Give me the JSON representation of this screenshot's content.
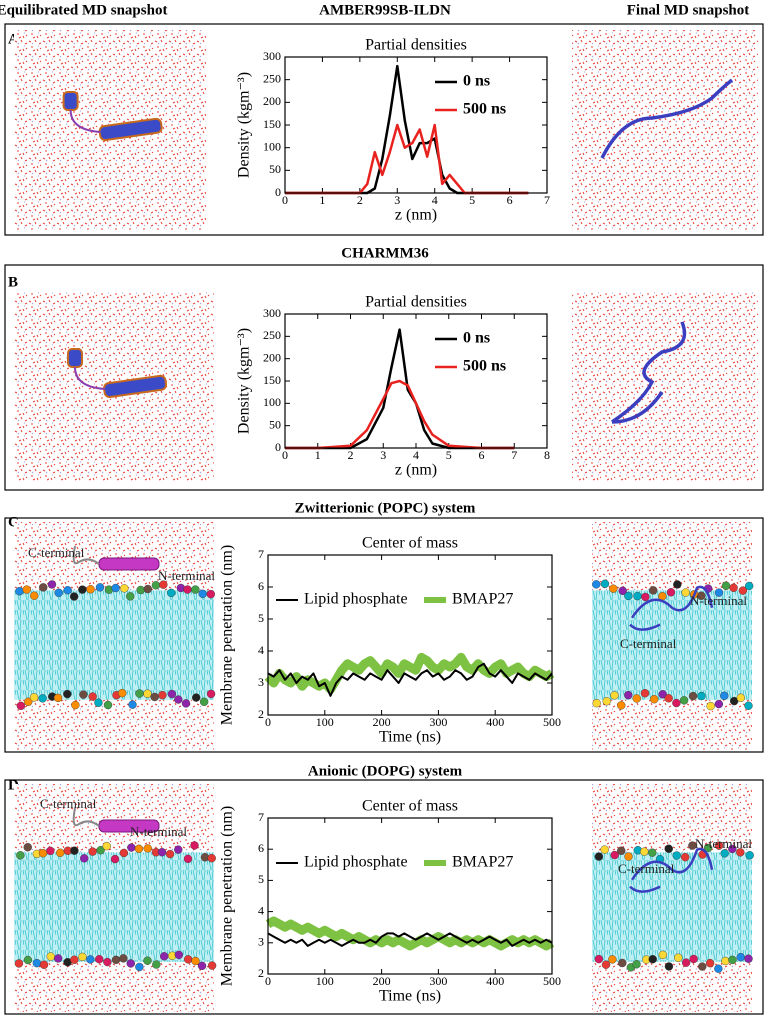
{
  "headers": {
    "left": "Equilibrated MD snapshot",
    "right": "Final MD snapshot"
  },
  "panels": [
    {
      "label": "A",
      "title": "AMBER99SB-ILDN"
    },
    {
      "label": "B",
      "title": "CHARMM36"
    },
    {
      "label": "C",
      "title": "Zwitterionic (POPC) system",
      "annotations": {
        "left": [
          "C-terminal",
          "N-terminal"
        ],
        "right": [
          "N-terminal",
          "C-terminal"
        ]
      }
    },
    {
      "label": "D",
      "title": "Anionic (DOPG) system",
      "annotations": {
        "left": [
          "C-terminal",
          "N-terminal"
        ],
        "right": [
          "N-terminal",
          "C-terminal"
        ]
      }
    }
  ],
  "chart_data": [
    {
      "type": "line",
      "title": "Partial densities",
      "x_label": "z (nm)",
      "y_label": "Density (kgm⁻³)",
      "xlim": [
        0,
        7
      ],
      "ylim": [
        0,
        300
      ],
      "xticks": [
        0,
        1,
        2,
        3,
        4,
        5,
        6,
        7
      ],
      "yticks": [
        0,
        50,
        100,
        150,
        200,
        250,
        300
      ],
      "legend": "upper right",
      "x": [
        0,
        0.5,
        1,
        1.5,
        2,
        2.2,
        2.4,
        2.6,
        2.8,
        3.0,
        3.2,
        3.4,
        3.6,
        3.8,
        4.0,
        4.2,
        4.4,
        4.6,
        4.8,
        5,
        6,
        6.5
      ],
      "series": [
        {
          "name": "0 ns",
          "color": "#000000",
          "width": 2.5,
          "values": [
            0,
            0,
            0,
            0,
            0,
            0,
            10,
            75,
            170,
            280,
            160,
            75,
            110,
            110,
            120,
            40,
            10,
            0,
            0,
            0,
            0,
            0
          ]
        },
        {
          "name": "500 ns",
          "color": "#e8231f",
          "width": 2.5,
          "values": [
            0,
            0,
            0,
            0,
            0,
            20,
            90,
            40,
            90,
            150,
            100,
            110,
            140,
            80,
            150,
            20,
            40,
            20,
            0,
            0,
            0,
            0
          ]
        }
      ]
    },
    {
      "type": "line",
      "title": "Partial densities",
      "x_label": "z (nm)",
      "y_label": "Density (kgm⁻³)",
      "xlim": [
        0,
        8
      ],
      "ylim": [
        0,
        300
      ],
      "xticks": [
        0,
        1,
        2,
        3,
        4,
        5,
        6,
        7,
        8
      ],
      "yticks": [
        0,
        50,
        100,
        150,
        200,
        250,
        300
      ],
      "legend": "upper right",
      "x": [
        0,
        1,
        2,
        2.5,
        3,
        3.25,
        3.5,
        3.75,
        4,
        4.25,
        4.5,
        5,
        6,
        7
      ],
      "series": [
        {
          "name": "0 ns",
          "color": "#000000",
          "width": 2.5,
          "values": [
            0,
            0,
            0,
            20,
            90,
            180,
            265,
            130,
            100,
            40,
            10,
            0,
            0,
            0
          ]
        },
        {
          "name": "500 ns",
          "color": "#e8231f",
          "width": 2.5,
          "values": [
            0,
            0,
            5,
            40,
            110,
            145,
            150,
            140,
            100,
            60,
            30,
            5,
            0,
            0
          ]
        }
      ]
    },
    {
      "type": "line",
      "title": "Center of mass",
      "x_label": "Time (ns)",
      "y_label": "Membrane penetration (nm)",
      "xlim": [
        0,
        500
      ],
      "ylim": [
        2,
        7
      ],
      "xticks": [
        0,
        100,
        200,
        300,
        400,
        500
      ],
      "yticks": [
        2,
        3,
        4,
        5,
        6,
        7
      ],
      "legend": "upper left",
      "x": [
        0,
        10,
        20,
        30,
        40,
        50,
        60,
        70,
        80,
        90,
        100,
        110,
        120,
        130,
        140,
        150,
        160,
        170,
        180,
        190,
        200,
        210,
        220,
        230,
        240,
        250,
        260,
        270,
        280,
        290,
        300,
        310,
        320,
        330,
        340,
        350,
        360,
        370,
        380,
        390,
        400,
        410,
        420,
        430,
        440,
        450,
        460,
        470,
        480,
        490,
        500
      ],
      "series": [
        {
          "name": "Lipid phosphate",
          "color": "#000000",
          "width": 2,
          "values": [
            3.3,
            3.2,
            3.4,
            3.1,
            3.3,
            3.0,
            3.2,
            3.1,
            3.3,
            2.9,
            3.0,
            2.6,
            3.0,
            3.2,
            3.1,
            3.3,
            3.2,
            3.1,
            3.3,
            3.2,
            3.1,
            3.4,
            3.2,
            3.0,
            3.3,
            3.2,
            3.1,
            3.3,
            3.4,
            3.2,
            3.3,
            3.1,
            3.2,
            3.4,
            3.3,
            3.1,
            3.2,
            3.5,
            3.6,
            3.3,
            3.2,
            3.4,
            3.2,
            3.0,
            3.3,
            3.2,
            3.1,
            3.3,
            3.2,
            3.1,
            3.3
          ]
        },
        {
          "name": "BMAP27",
          "color": "#7dc242",
          "width": 9,
          "values": [
            3.2,
            3.0,
            3.3,
            3.1,
            3.0,
            3.2,
            2.9,
            3.1,
            3.0,
            2.9,
            3.0,
            2.8,
            3.1,
            3.4,
            3.6,
            3.5,
            3.4,
            3.6,
            3.7,
            3.5,
            3.3,
            3.6,
            3.5,
            3.3,
            3.6,
            3.5,
            3.4,
            3.8,
            3.7,
            3.5,
            3.4,
            3.6,
            3.5,
            3.6,
            3.8,
            3.5,
            3.4,
            3.6,
            3.4,
            3.3,
            3.5,
            3.6,
            3.3,
            3.4,
            3.5,
            3.3,
            3.2,
            3.4,
            3.3,
            3.2,
            3.3
          ]
        }
      ]
    },
    {
      "type": "line",
      "title": "Center of mass",
      "x_label": "Time (ns)",
      "y_label": "Membrane penetration (nm)",
      "xlim": [
        0,
        500
      ],
      "ylim": [
        2,
        7
      ],
      "xticks": [
        0,
        100,
        200,
        300,
        400,
        500
      ],
      "yticks": [
        2,
        3,
        4,
        5,
        6,
        7
      ],
      "legend": "upper left",
      "x": [
        0,
        10,
        20,
        30,
        40,
        50,
        60,
        70,
        80,
        90,
        100,
        110,
        120,
        130,
        140,
        150,
        160,
        170,
        180,
        190,
        200,
        210,
        220,
        230,
        240,
        250,
        260,
        270,
        280,
        290,
        300,
        310,
        320,
        330,
        340,
        350,
        360,
        370,
        380,
        390,
        400,
        410,
        420,
        430,
        440,
        450,
        460,
        470,
        480,
        490,
        500
      ],
      "series": [
        {
          "name": "Lipid phosphate",
          "color": "#000000",
          "width": 2,
          "values": [
            3.3,
            3.2,
            3.1,
            3.0,
            3.1,
            3.0,
            3.1,
            2.9,
            3.0,
            3.1,
            3.0,
            3.1,
            3.0,
            2.9,
            3.0,
            3.1,
            3.0,
            3.0,
            3.1,
            3.0,
            3.2,
            3.3,
            3.3,
            3.2,
            3.3,
            3.2,
            3.1,
            3.2,
            3.3,
            3.2,
            3.1,
            3.2,
            3.3,
            3.2,
            3.1,
            3.0,
            3.1,
            3.0,
            3.1,
            3.2,
            3.1,
            3.0,
            3.1,
            2.9,
            3.0,
            3.1,
            3.0,
            3.1,
            3.0,
            3.1,
            3.0
          ]
        },
        {
          "name": "BMAP27",
          "color": "#7dc242",
          "width": 9,
          "values": [
            3.6,
            3.7,
            3.6,
            3.5,
            3.6,
            3.5,
            3.4,
            3.5,
            3.4,
            3.3,
            3.4,
            3.3,
            3.2,
            3.3,
            3.2,
            3.1,
            3.2,
            3.1,
            3.0,
            3.1,
            3.0,
            3.1,
            3.0,
            3.1,
            3.0,
            2.9,
            3.0,
            3.1,
            3.0,
            3.1,
            3.2,
            3.1,
            3.0,
            3.1,
            3.0,
            3.1,
            3.0,
            3.1,
            3.0,
            3.1,
            3.0,
            2.9,
            3.0,
            3.1,
            3.0,
            3.1,
            3.0,
            3.1,
            3.0,
            2.9,
            3.0
          ]
        }
      ]
    }
  ]
}
